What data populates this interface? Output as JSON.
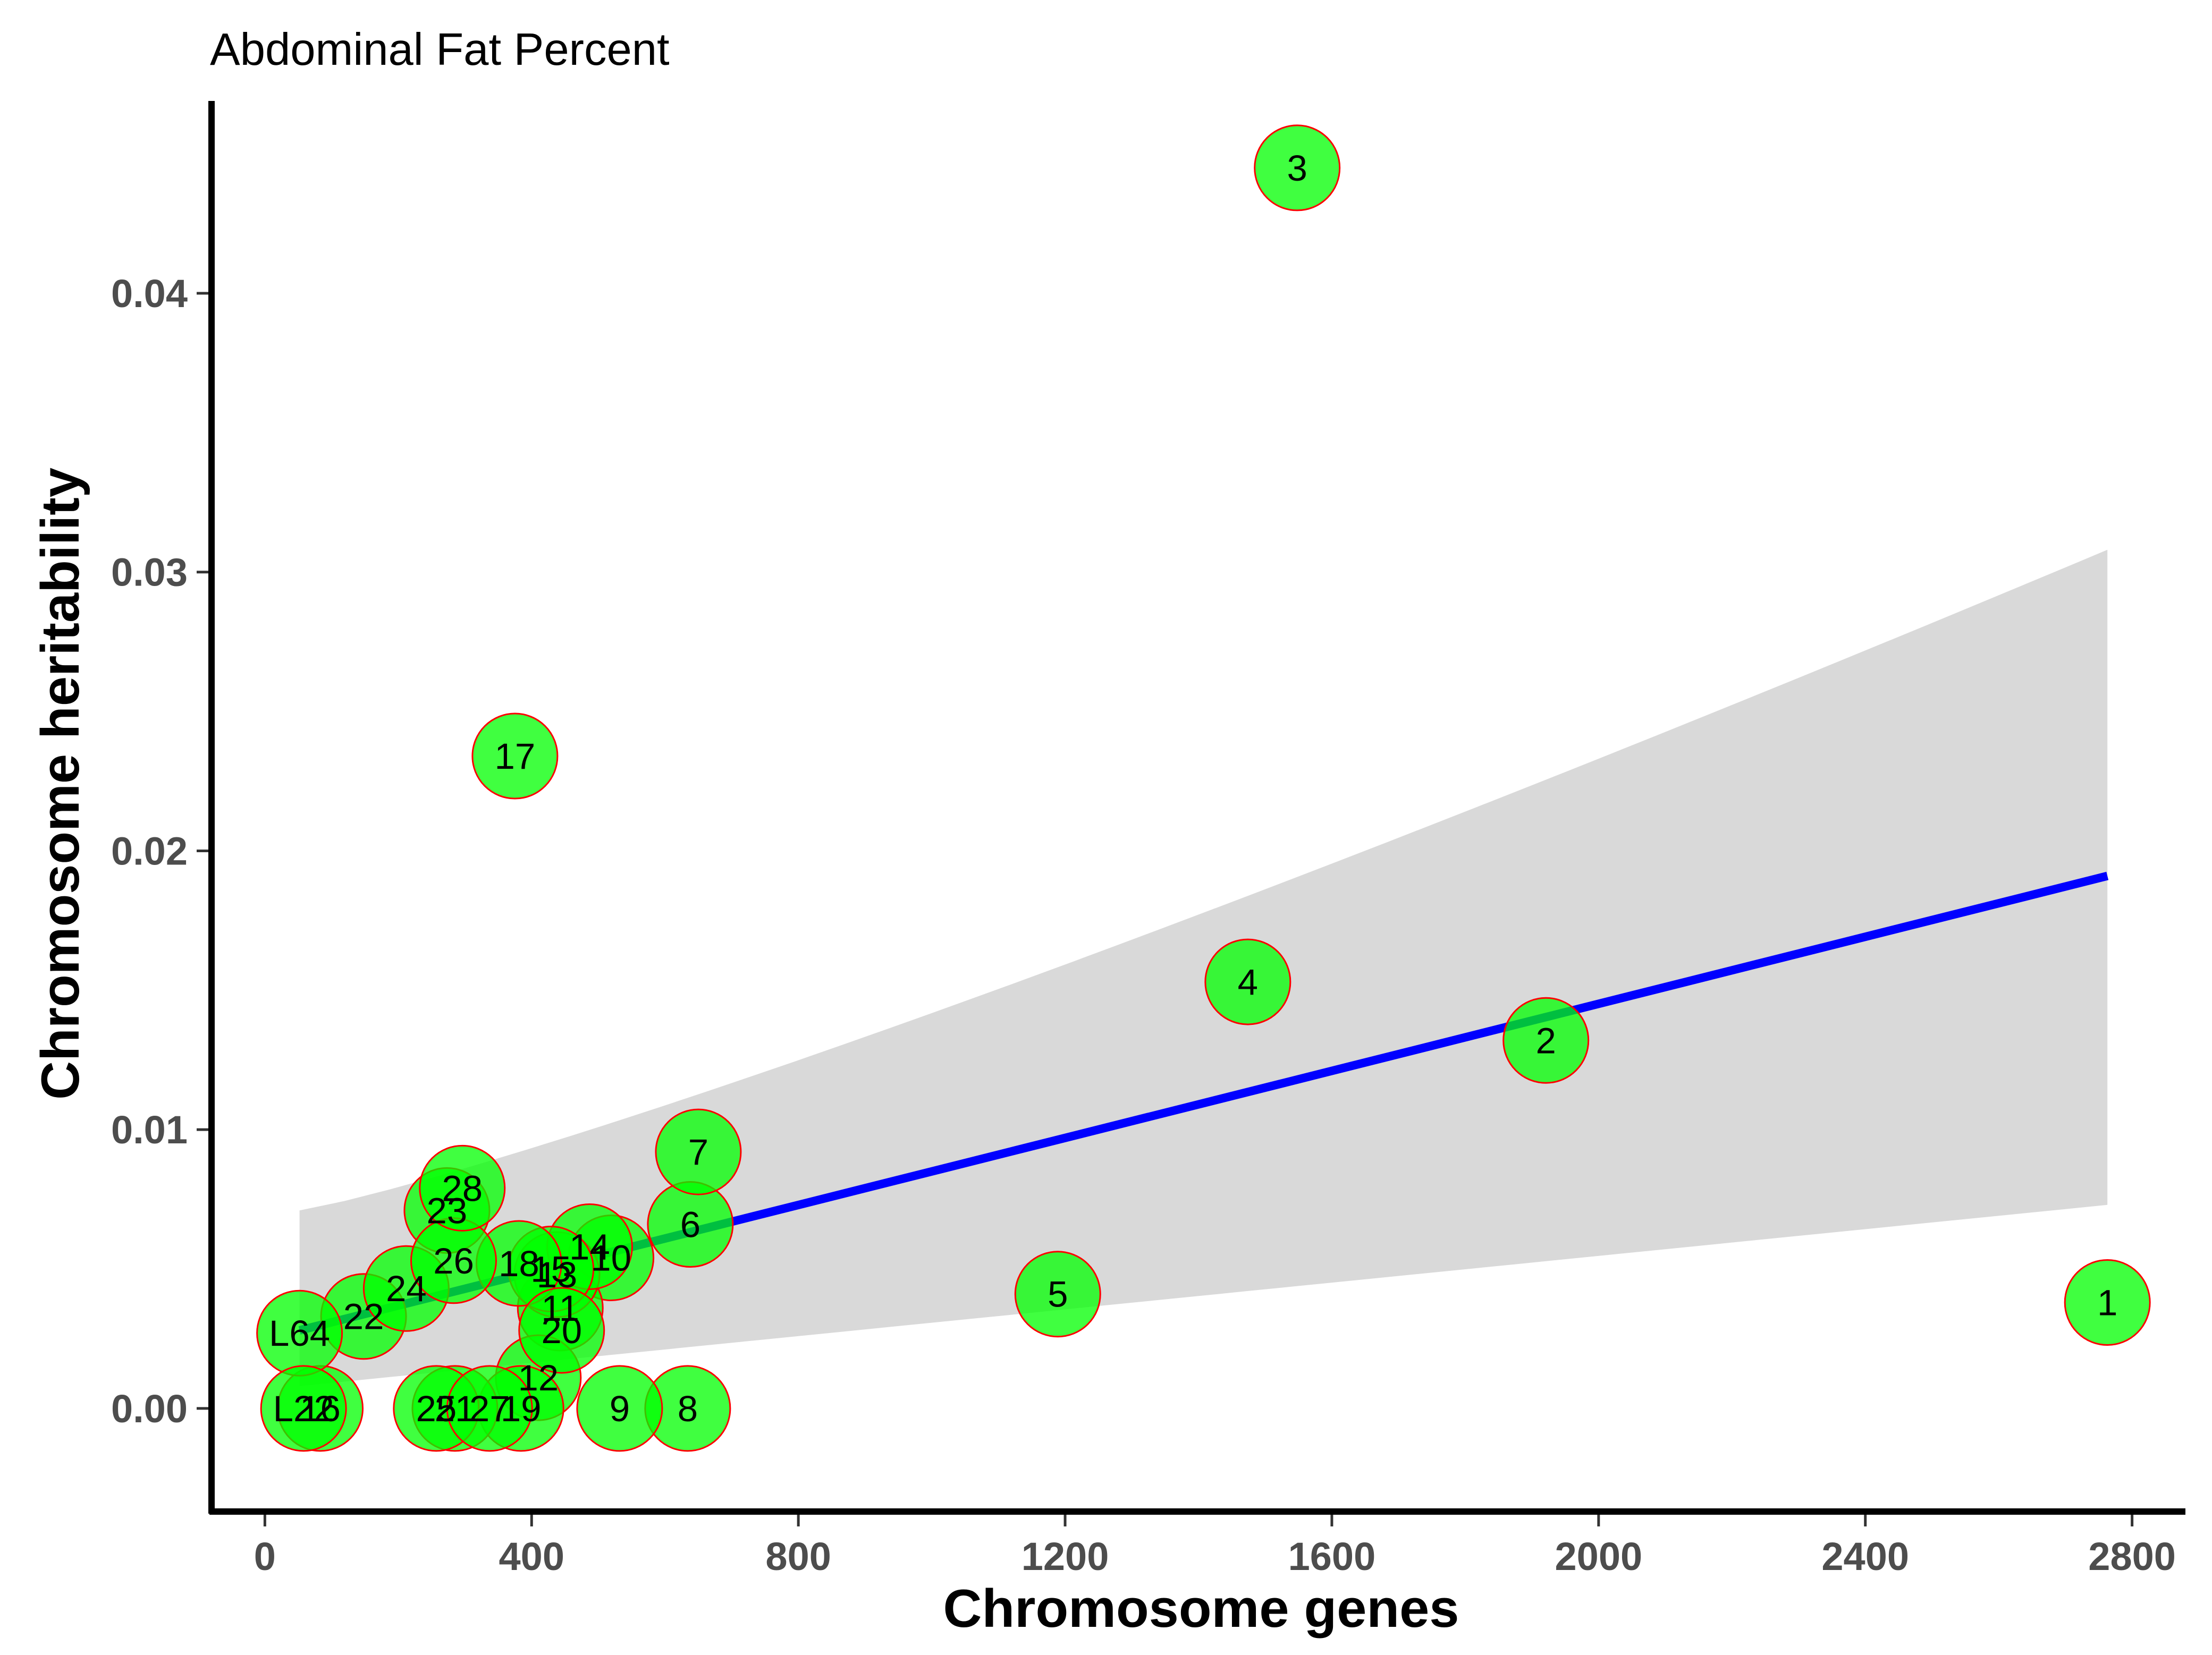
{
  "chart_data": {
    "type": "scatter",
    "title": "Abdominal Fat Percent",
    "xlabel": "Chromosome genes",
    "ylabel": "Chromosome heritability",
    "xlim": [
      -80,
      2880
    ],
    "ylim": [
      -0.0037,
      0.0469
    ],
    "x_ticks": [
      0,
      400,
      800,
      1200,
      1600,
      2000,
      2400,
      2800
    ],
    "x_tick_labels": [
      "0",
      "400",
      "800",
      "1200",
      "1600",
      "2000",
      "2400",
      "2800"
    ],
    "y_ticks": [
      0.0,
      0.01,
      0.02,
      0.03,
      0.04
    ],
    "y_tick_labels": [
      "0.00",
      "0.01",
      "0.02",
      "0.03",
      "0.04"
    ],
    "grid": false,
    "points": [
      {
        "label": "1",
        "x": 2763,
        "y": 0.0038
      },
      {
        "label": "2",
        "x": 1921,
        "y": 0.0132
      },
      {
        "label": "3",
        "x": 1548,
        "y": 0.0445
      },
      {
        "label": "4",
        "x": 1474,
        "y": 0.0153
      },
      {
        "label": "5",
        "x": 1189,
        "y": 0.0041
      },
      {
        "label": "6",
        "x": 638,
        "y": 0.0066
      },
      {
        "label": "7",
        "x": 650,
        "y": 0.0092
      },
      {
        "label": "8",
        "x": 634,
        "y": 0.0
      },
      {
        "label": "9",
        "x": 532,
        "y": 0.0
      },
      {
        "label": "10",
        "x": 519,
        "y": 0.0054
      },
      {
        "label": "11",
        "x": 443,
        "y": 0.0036
      },
      {
        "label": "12",
        "x": 410,
        "y": 0.0011
      },
      {
        "label": "13",
        "x": 438,
        "y": 0.0048
      },
      {
        "label": "14",
        "x": 487,
        "y": 0.0058
      },
      {
        "label": "15",
        "x": 429,
        "y": 0.005
      },
      {
        "label": "16",
        "x": 83,
        "y": 0.0
      },
      {
        "label": "17",
        "x": 375,
        "y": 0.0234
      },
      {
        "label": "18",
        "x": 381,
        "y": 0.0052
      },
      {
        "label": "19",
        "x": 384,
        "y": 0.0
      },
      {
        "label": "20",
        "x": 445,
        "y": 0.0028
      },
      {
        "label": "21",
        "x": 285,
        "y": 0.0
      },
      {
        "label": "22",
        "x": 148,
        "y": 0.0033
      },
      {
        "label": "23",
        "x": 273,
        "y": 0.0071
      },
      {
        "label": "24",
        "x": 212,
        "y": 0.0043
      },
      {
        "label": "25",
        "x": 257,
        "y": 0.0
      },
      {
        "label": "26",
        "x": 283,
        "y": 0.0053
      },
      {
        "label": "27",
        "x": 337,
        "y": 0.0
      },
      {
        "label": "28",
        "x": 296,
        "y": 0.0079
      },
      {
        "label": "L64",
        "x": 52,
        "y": 0.0027
      },
      {
        "label": "L22",
        "x": 58,
        "y": 0.0
      }
    ],
    "fit": {
      "method": "linear",
      "x_range": [
        52,
        2763
      ],
      "y_range": [
        0.0028,
        0.0191
      ],
      "ci_lower": [
        0.0008,
        0.0073
      ],
      "ci_upper": [
        0.0071,
        0.0308
      ]
    },
    "colors": {
      "point_fill": "#00ff00",
      "point_stroke": "#ff0000",
      "fit_line": "#0000ff",
      "ci_band": "#d9d9d9",
      "axis": "#000000",
      "tick_text": "#4d4d4d"
    }
  }
}
